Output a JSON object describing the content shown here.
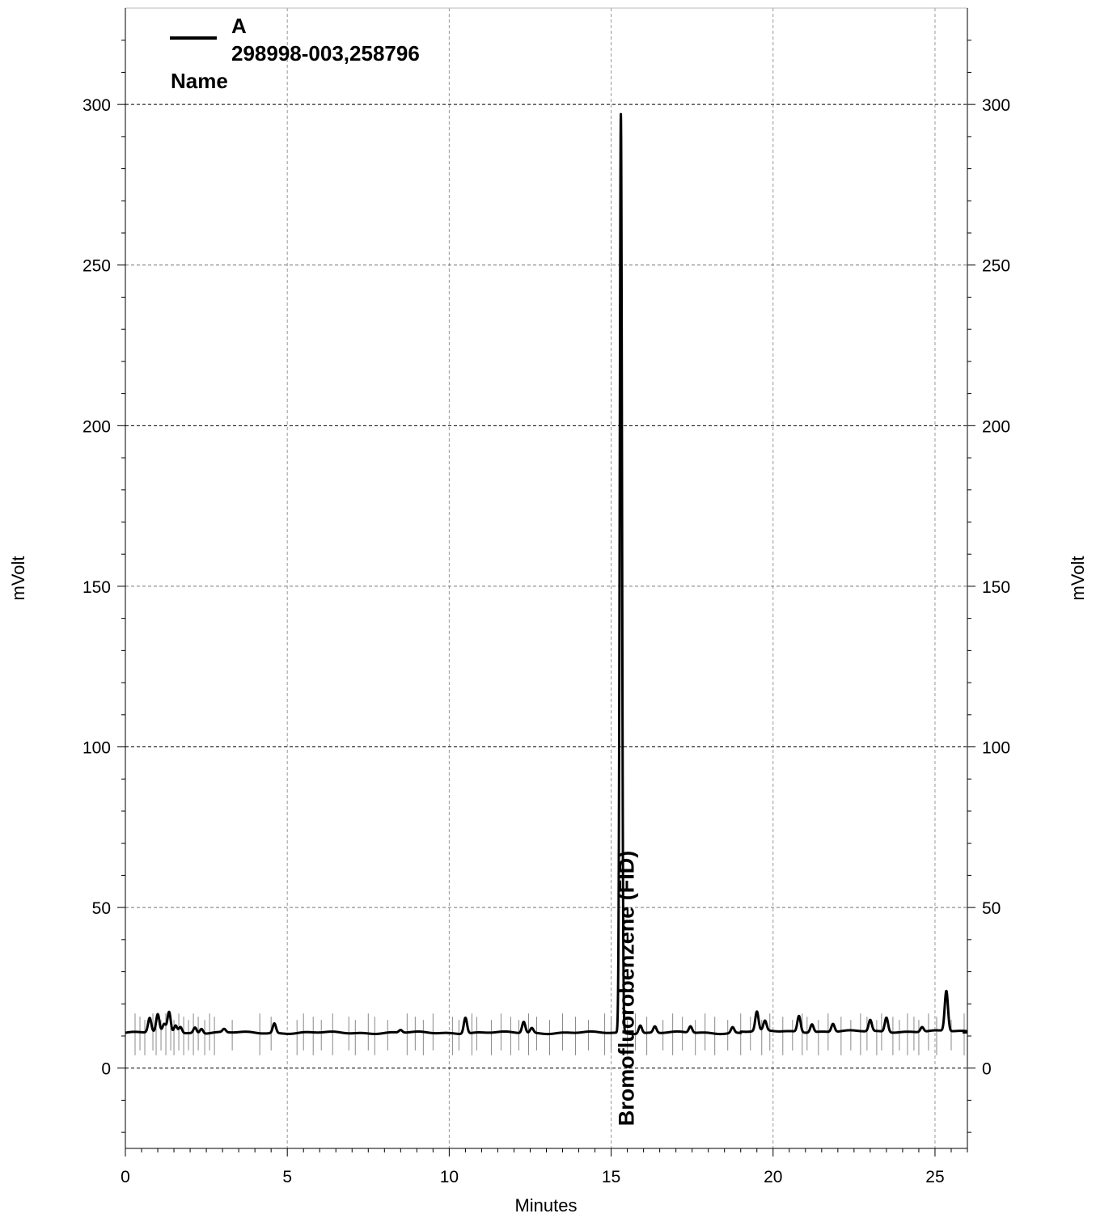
{
  "chart_data": {
    "type": "line",
    "xlabel": "Minutes",
    "ylabel_left": "mVolt",
    "ylabel_right": "mVolt",
    "xlim": [
      0,
      26
    ],
    "ylim": [
      -25,
      330
    ],
    "x_ticks": [
      0,
      5,
      10,
      15,
      20,
      25
    ],
    "y_ticks": [
      0,
      50,
      100,
      150,
      200,
      250,
      300
    ],
    "grid": true,
    "legend": {
      "position": "top-left",
      "entries": [
        {
          "label": "A",
          "sublabel": "298998-003,258796"
        }
      ],
      "header": "Name"
    },
    "annotations": [
      {
        "text": "Bromofluorobenzene (FID)",
        "x": 15.3,
        "orientation": "vertical"
      }
    ],
    "baseline_mv": 11,
    "peaks": [
      {
        "rt": 0.75,
        "height": 15.5
      },
      {
        "rt": 1.0,
        "height": 16.5
      },
      {
        "rt": 1.2,
        "height": 13.5
      },
      {
        "rt": 1.35,
        "height": 17.5
      },
      {
        "rt": 1.55,
        "height": 13.5
      },
      {
        "rt": 1.7,
        "height": 13.0
      },
      {
        "rt": 2.15,
        "height": 12.8
      },
      {
        "rt": 2.35,
        "height": 12.5
      },
      {
        "rt": 3.05,
        "height": 12.0
      },
      {
        "rt": 4.6,
        "height": 14.0
      },
      {
        "rt": 8.5,
        "height": 11.8
      },
      {
        "rt": 10.5,
        "height": 16.0
      },
      {
        "rt": 12.3,
        "height": 14.5
      },
      {
        "rt": 12.55,
        "height": 12.5
      },
      {
        "rt": 15.3,
        "height": 297
      },
      {
        "rt": 15.9,
        "height": 13.5
      },
      {
        "rt": 16.35,
        "height": 13.0
      },
      {
        "rt": 17.45,
        "height": 13.0
      },
      {
        "rt": 18.75,
        "height": 12.8
      },
      {
        "rt": 19.5,
        "height": 17.0
      },
      {
        "rt": 19.75,
        "height": 14.0
      },
      {
        "rt": 20.8,
        "height": 16.0
      },
      {
        "rt": 21.2,
        "height": 13.5
      },
      {
        "rt": 21.85,
        "height": 13.5
      },
      {
        "rt": 23.0,
        "height": 14.5
      },
      {
        "rt": 23.5,
        "height": 15.5
      },
      {
        "rt": 24.6,
        "height": 12.5
      },
      {
        "rt": 25.35,
        "height": 23.5
      }
    ],
    "event_markers_min": [
      0.3,
      0.45,
      0.6,
      0.85,
      0.95,
      1.1,
      1.25,
      1.4,
      1.5,
      1.65,
      1.8,
      1.95,
      2.1,
      2.25,
      2.45,
      2.6,
      2.75,
      3.3,
      4.15,
      4.5,
      5.3,
      5.5,
      5.8,
      6.05,
      6.4,
      6.9,
      7.1,
      7.5,
      7.7,
      8.1,
      8.7,
      8.95,
      9.2,
      9.5,
      10.1,
      10.3,
      10.7,
      10.85,
      11.3,
      11.6,
      11.9,
      12.15,
      12.45,
      12.7,
      13.1,
      13.5,
      13.9,
      14.3,
      14.8,
      15.0,
      15.5,
      15.75,
      16.1,
      16.6,
      16.9,
      17.2,
      17.6,
      17.9,
      18.2,
      18.6,
      19.0,
      19.3,
      19.65,
      19.9,
      20.3,
      20.6,
      20.9,
      21.05,
      21.4,
      21.7,
      22.1,
      22.4,
      22.7,
      22.9,
      23.2,
      23.35,
      23.7,
      23.9,
      24.15,
      24.35,
      24.5,
      24.8,
      25.05,
      25.5,
      25.9
    ]
  }
}
